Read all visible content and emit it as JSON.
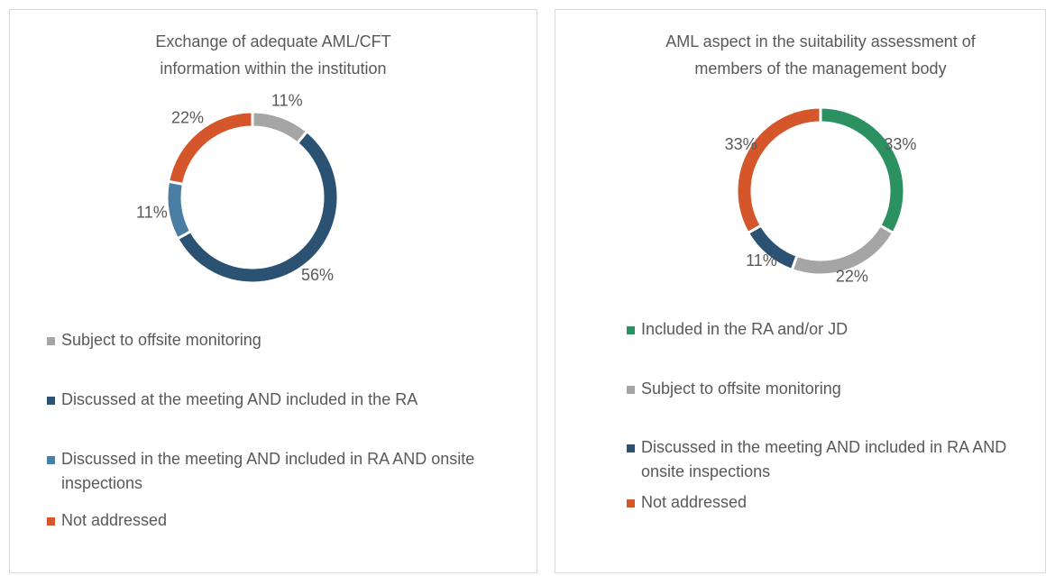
{
  "chart_data": [
    {
      "type": "pie",
      "donut": true,
      "title": "Exchange of adequate AML/CFT information within the institution",
      "categories": [
        "Subject to offsite monitoring",
        "Discussed at the meeting AND included in the RA",
        "Discussed in the meeting AND included in RA AND onsite inspections",
        "Not addressed"
      ],
      "values": [
        11,
        56,
        11,
        22
      ],
      "value_labels": [
        "11%",
        "56%",
        "11%",
        "22%"
      ],
      "colors": [
        "#a5a5a5",
        "#2c5273",
        "#4a7ea3",
        "#d4562a"
      ],
      "legend": "bottom"
    },
    {
      "type": "pie",
      "donut": true,
      "title": "AML aspect in the suitability assessment of members of the management body",
      "categories": [
        "Included in the RA and/or JD",
        "Subject to offsite monitoring",
        "Discussed in the meeting AND included in RA AND onsite inspections",
        "Not addressed"
      ],
      "values": [
        33,
        22,
        11,
        33
      ],
      "value_labels": [
        "33%",
        "22%",
        "11%",
        "33%"
      ],
      "colors": [
        "#2b9160",
        "#a5a5a5",
        "#2c5273",
        "#d4562a"
      ],
      "legend": "bottom"
    }
  ]
}
